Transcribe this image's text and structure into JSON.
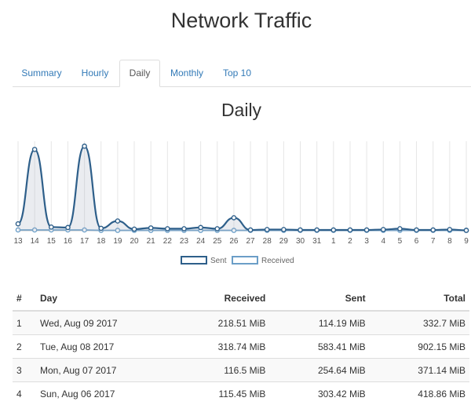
{
  "page": {
    "title": "Network Traffic"
  },
  "tabs": [
    {
      "label": "Summary",
      "active": false
    },
    {
      "label": "Hourly",
      "active": false
    },
    {
      "label": "Daily",
      "active": true
    },
    {
      "label": "Monthly",
      "active": false
    },
    {
      "label": "Top 10",
      "active": false
    }
  ],
  "section_title": "Daily",
  "chart_data": {
    "type": "line",
    "title": "",
    "x": [
      "13",
      "14",
      "15",
      "16",
      "17",
      "18",
      "19",
      "20",
      "21",
      "22",
      "23",
      "24",
      "25",
      "26",
      "27",
      "28",
      "29",
      "30",
      "31",
      "1",
      "2",
      "3",
      "4",
      "5",
      "6",
      "7",
      "8",
      "9"
    ],
    "series": [
      {
        "name": "Sent",
        "color": "#2e5f8a",
        "values": [
          85,
          1000,
          45,
          40,
          1040,
          30,
          120,
          20,
          35,
          25,
          25,
          40,
          25,
          160,
          10,
          15,
          15,
          10,
          10,
          10,
          10,
          10,
          15,
          25,
          10,
          10,
          15,
          5
        ]
      },
      {
        "name": "Received",
        "color": "#6b9ec7",
        "values": [
          10,
          10,
          10,
          10,
          10,
          5,
          5,
          5,
          5,
          5,
          5,
          5,
          5,
          5,
          5,
          5,
          5,
          5,
          5,
          5,
          5,
          5,
          5,
          5,
          5,
          5,
          5,
          5
        ]
      }
    ],
    "grid": true,
    "legend": "bottom-center"
  },
  "table": {
    "headers": {
      "num": "#",
      "day": "Day",
      "received": "Received",
      "sent": "Sent",
      "total": "Total"
    },
    "rows": [
      {
        "num": "1",
        "day": "Wed, Aug 09 2017",
        "received": "218.51 MiB",
        "sent": "114.19 MiB",
        "total": "332.7 MiB"
      },
      {
        "num": "2",
        "day": "Tue, Aug 08 2017",
        "received": "318.74 MiB",
        "sent": "583.41 MiB",
        "total": "902.15 MiB"
      },
      {
        "num": "3",
        "day": "Mon, Aug 07 2017",
        "received": "116.5 MiB",
        "sent": "254.64 MiB",
        "total": "371.14 MiB"
      },
      {
        "num": "4",
        "day": "Sun, Aug 06 2017",
        "received": "115.45 MiB",
        "sent": "303.42 MiB",
        "total": "418.86 MiB"
      }
    ]
  }
}
